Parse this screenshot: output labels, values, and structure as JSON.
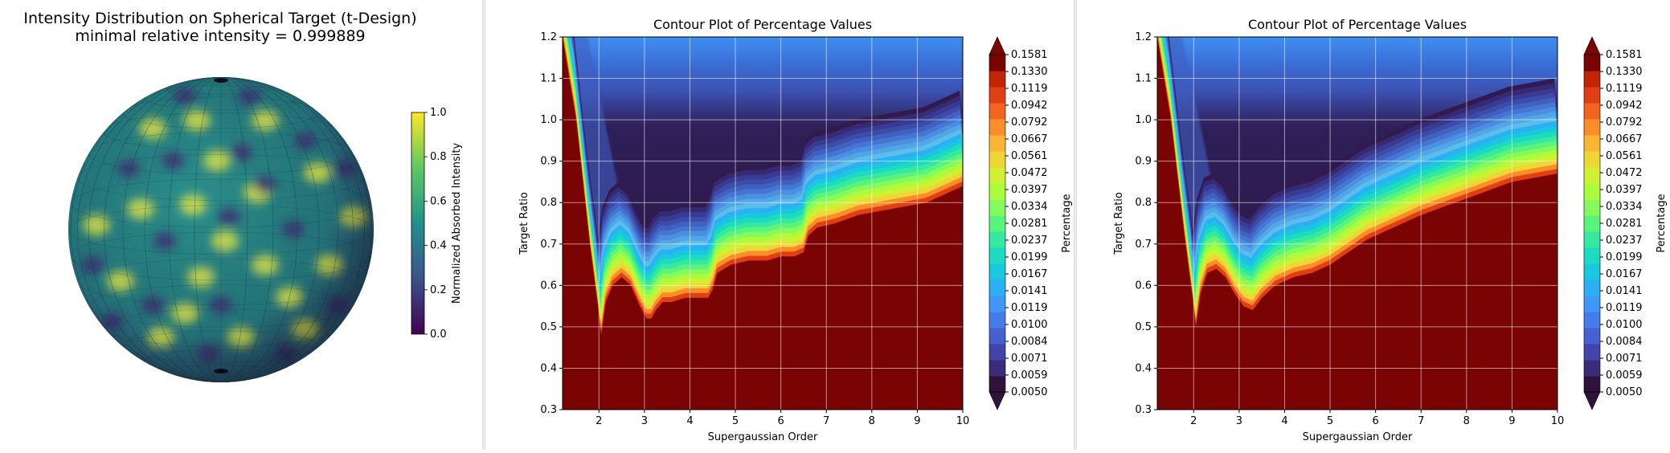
{
  "sphere_panel": {
    "title": "Intensity Distribution on Spherical Target (t-Design)",
    "subtitle": "minimal relative intensity = 0.999889",
    "colorbar_label": "Normalized Absorbed Intensity",
    "colorbar_ticks": [
      "0.0",
      "0.2",
      "0.4",
      "0.6",
      "0.8",
      "1.0"
    ],
    "colormap": "viridis"
  },
  "chart_data": [
    {
      "type": "heatmap",
      "id": "contour-1",
      "title": "Contour Plot of Percentage Values",
      "xlabel": "Supergaussian Order",
      "ylabel": "Target Ratio",
      "xlim": [
        1.2,
        10
      ],
      "ylim": [
        0.3,
        1.2
      ],
      "x_ticks": [
        "2",
        "3",
        "4",
        "5",
        "6",
        "7",
        "8",
        "9",
        "10"
      ],
      "y_ticks": [
        "0.3",
        "0.4",
        "0.5",
        "0.6",
        "0.7",
        "0.8",
        "0.9",
        "1.0",
        "1.1",
        "1.2"
      ],
      "grid": true,
      "colorbar_label": "Percentage",
      "colorbar_levels": [
        "0.0050",
        "0.0059",
        "0.0071",
        "0.0084",
        "0.0100",
        "0.0119",
        "0.0141",
        "0.0167",
        "0.0199",
        "0.0237",
        "0.0281",
        "0.0334",
        "0.0397",
        "0.0472",
        "0.0561",
        "0.0667",
        "0.0792",
        "0.0942",
        "0.1119",
        "0.1330",
        "0.1581"
      ],
      "colormap": "turbo",
      "boundary": {
        "x": [
          1.2,
          1.5,
          1.8,
          2.0,
          2.05,
          2.15,
          2.3,
          2.5,
          2.7,
          2.9,
          3.05,
          3.15,
          3.25,
          3.4,
          3.6,
          3.9,
          4.2,
          4.4,
          4.5,
          4.6,
          4.9,
          5.3,
          5.7,
          6.0,
          6.3,
          6.5,
          6.6,
          6.8,
          7.2,
          7.7,
          8.2,
          8.7,
          9.2,
          9.6,
          10.0
        ],
        "y": [
          1.2,
          1.0,
          0.7,
          0.53,
          0.48,
          0.56,
          0.6,
          0.62,
          0.6,
          0.55,
          0.52,
          0.52,
          0.54,
          0.56,
          0.56,
          0.57,
          0.57,
          0.57,
          0.59,
          0.63,
          0.65,
          0.66,
          0.66,
          0.67,
          0.67,
          0.68,
          0.72,
          0.74,
          0.75,
          0.77,
          0.78,
          0.79,
          0.8,
          0.82,
          0.84
        ]
      }
    },
    {
      "type": "heatmap",
      "id": "contour-2",
      "title": "Contour Plot of Percentage Values",
      "xlabel": "Supergaussian Order",
      "ylabel": "Target Ratio",
      "xlim": [
        1.2,
        10
      ],
      "ylim": [
        0.3,
        1.2
      ],
      "x_ticks": [
        "2",
        "3",
        "4",
        "5",
        "6",
        "7",
        "8",
        "9",
        "10"
      ],
      "y_ticks": [
        "0.3",
        "0.4",
        "0.5",
        "0.6",
        "0.7",
        "0.8",
        "0.9",
        "1.0",
        "1.1",
        "1.2"
      ],
      "grid": true,
      "colorbar_label": "Percentage",
      "colorbar_levels": [
        "0.0050",
        "0.0059",
        "0.0071",
        "0.0084",
        "0.0100",
        "0.0119",
        "0.0141",
        "0.0167",
        "0.0199",
        "0.0237",
        "0.0281",
        "0.0334",
        "0.0397",
        "0.0472",
        "0.0561",
        "0.0667",
        "0.0792",
        "0.0942",
        "0.1119",
        "0.1330",
        "0.1581"
      ],
      "colormap": "turbo",
      "boundary": {
        "x": [
          1.2,
          1.5,
          1.8,
          2.0,
          2.05,
          2.15,
          2.3,
          2.5,
          2.7,
          2.9,
          3.1,
          3.3,
          3.5,
          3.8,
          4.2,
          4.6,
          5.0,
          5.4,
          5.8,
          6.2,
          6.6,
          7.0,
          7.5,
          8.0,
          8.5,
          9.0,
          9.5,
          10.0
        ],
        "y": [
          1.2,
          1.0,
          0.72,
          0.55,
          0.5,
          0.58,
          0.63,
          0.64,
          0.62,
          0.58,
          0.55,
          0.54,
          0.57,
          0.6,
          0.62,
          0.63,
          0.65,
          0.68,
          0.71,
          0.73,
          0.75,
          0.77,
          0.79,
          0.81,
          0.83,
          0.85,
          0.86,
          0.87
        ]
      }
    }
  ]
}
